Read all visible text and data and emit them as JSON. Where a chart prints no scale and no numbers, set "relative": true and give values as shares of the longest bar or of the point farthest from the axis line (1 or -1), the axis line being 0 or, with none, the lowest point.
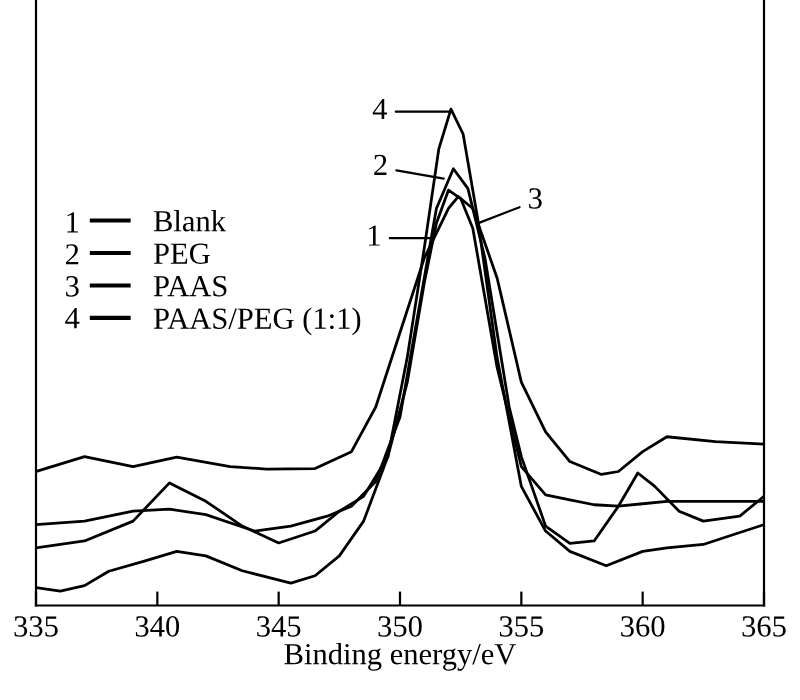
{
  "chart_data": {
    "type": "line",
    "relative": true,
    "xlabel": "Binding energy/eV",
    "xlim": [
      335,
      365
    ],
    "xticks": [
      335,
      340,
      345,
      350,
      355,
      360,
      365
    ],
    "grid": false,
    "legend": "left",
    "marker": "none",
    "line_style": "solid",
    "series": [
      {
        "name": "Blank",
        "color": "#000000",
        "x": [
          335,
          337,
          339,
          340.5,
          342,
          343.5,
          345,
          346.5,
          347.5,
          348.5,
          349.5,
          350.3,
          351,
          351.5,
          352,
          352.5,
          353,
          354,
          355,
          356,
          357,
          358,
          359,
          360,
          361,
          363,
          365
        ],
        "values": [
          0.116,
          0.13,
          0.17,
          0.247,
          0.21,
          0.16,
          0.126,
          0.15,
          0.19,
          0.22,
          0.3,
          0.45,
          0.65,
          0.77,
          0.837,
          0.82,
          0.76,
          0.48,
          0.28,
          0.223,
          0.213,
          0.203,
          0.2,
          0.205,
          0.21,
          0.21,
          0.21
        ]
      },
      {
        "name": "PEG",
        "color": "#000000",
        "x": [
          335,
          337,
          339,
          340.5,
          342,
          344,
          345.5,
          347,
          348,
          349,
          350,
          351,
          351.5,
          352.2,
          352.8,
          353.5,
          354.5,
          355,
          356,
          357,
          358,
          359,
          359.8,
          360.5,
          361.5,
          362.5,
          364,
          365
        ],
        "values": [
          0.163,
          0.17,
          0.19,
          0.194,
          0.183,
          0.15,
          0.16,
          0.18,
          0.2,
          0.25,
          0.38,
          0.66,
          0.8,
          0.88,
          0.84,
          0.7,
          0.4,
          0.3,
          0.16,
          0.125,
          0.13,
          0.2,
          0.267,
          0.24,
          0.19,
          0.17,
          0.18,
          0.22
        ]
      },
      {
        "name": "PAAS",
        "color": "#000000",
        "x": [
          335,
          337,
          339,
          340.8,
          343,
          344.5,
          346.5,
          348,
          349,
          350,
          351,
          352,
          352.4,
          353,
          354,
          355,
          356,
          357,
          358.3,
          359,
          360,
          361,
          363,
          365
        ],
        "values": [
          0.27,
          0.3,
          0.28,
          0.299,
          0.28,
          0.275,
          0.276,
          0.31,
          0.4,
          0.55,
          0.7,
          0.8,
          0.824,
          0.8,
          0.66,
          0.45,
          0.35,
          0.29,
          0.264,
          0.27,
          0.31,
          0.34,
          0.33,
          0.325
        ]
      },
      {
        "name": "PAAS/PEG (1:1)",
        "color": "#000000",
        "x": [
          335,
          336,
          337,
          338,
          339.5,
          340.8,
          342,
          343.5,
          345.5,
          346.5,
          347.5,
          348.5,
          349.5,
          350.3,
          351,
          351.6,
          352.1,
          352.6,
          353.2,
          354,
          355,
          356,
          357,
          358.5,
          360,
          361,
          362.5,
          363.5,
          365
        ],
        "values": [
          0.036,
          0.029,
          0.04,
          0.069,
          0.09,
          0.109,
          0.1,
          0.07,
          0.045,
          0.06,
          0.1,
          0.17,
          0.3,
          0.5,
          0.72,
          0.92,
          1.0,
          0.95,
          0.78,
          0.5,
          0.24,
          0.15,
          0.109,
          0.08,
          0.109,
          0.116,
          0.123,
          0.139,
          0.163
        ]
      }
    ],
    "annotations": [
      {
        "text": "1",
        "x": 351.3,
        "y": 0.74
      },
      {
        "text": "2",
        "x": 351.8,
        "y": 0.86
      },
      {
        "text": "3",
        "x": 353.2,
        "y": 0.77
      },
      {
        "text": "4",
        "x": 352.0,
        "y": 0.995
      }
    ]
  }
}
